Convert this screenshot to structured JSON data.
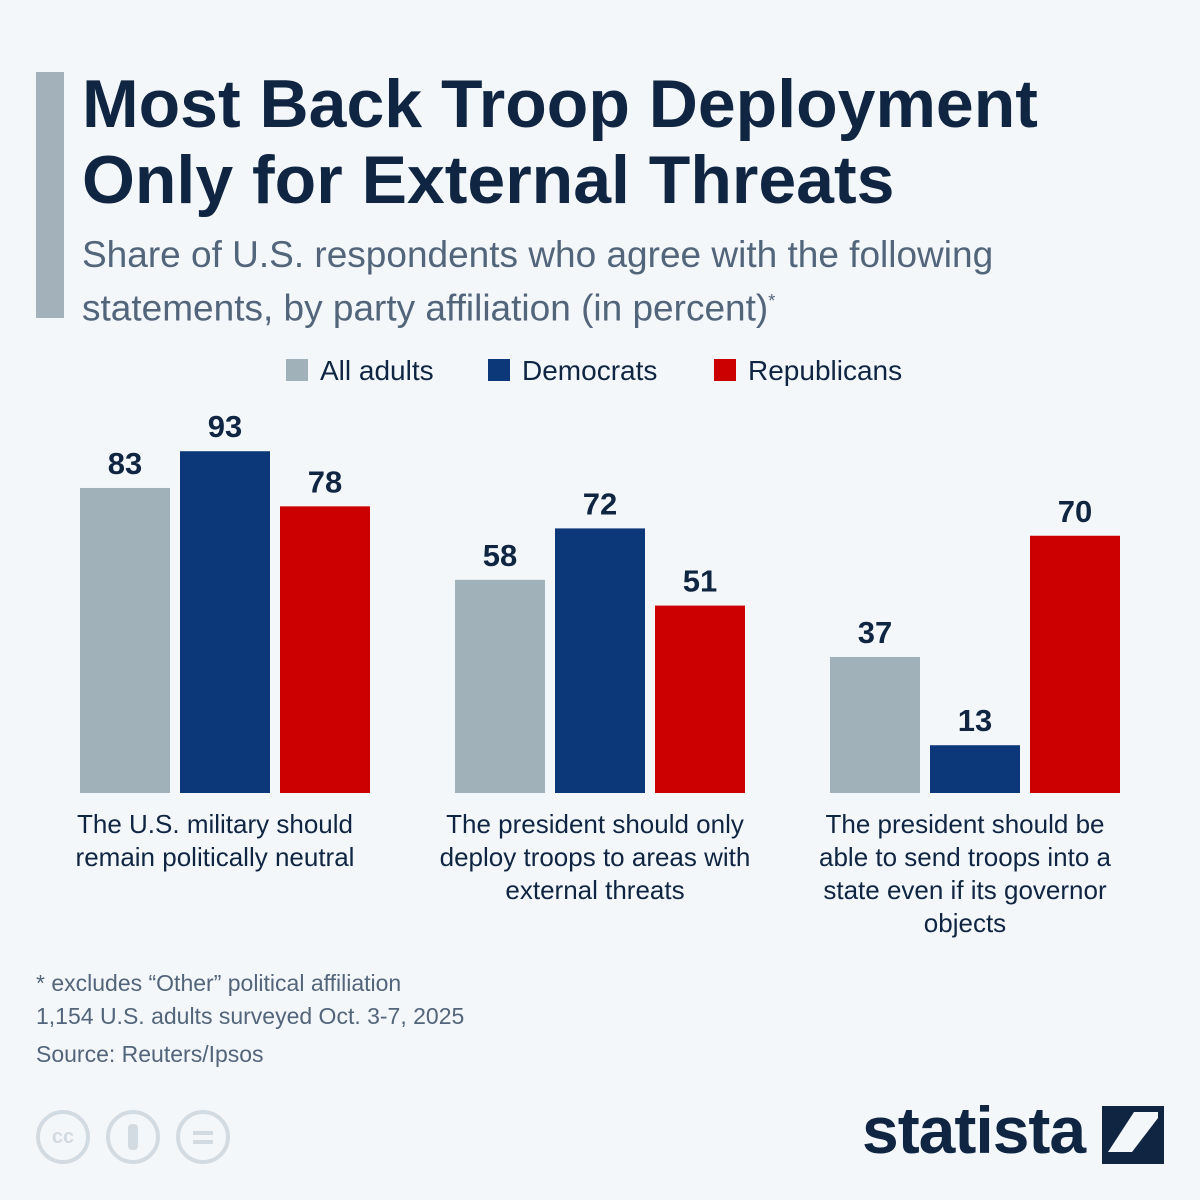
{
  "chart_data": {
    "type": "grouped_bar",
    "title": "Most Back Troop Deployment Only for External Threats",
    "subtitle": "Share of U.S. respondents who agree with the following statements, by party affiliation (in percent)",
    "subtitle_marker": "*",
    "categories": [
      "The U.S. military should remain politically neutral",
      "The president should only deploy troops to areas with external threats",
      "The president should be able to send troops into a state even if its governor objects"
    ],
    "series": [
      {
        "name": "All adults",
        "color": "#a0b1ba",
        "values": [
          83,
          58,
          37
        ]
      },
      {
        "name": "Democrats",
        "color": "#0c3879",
        "values": [
          93,
          72,
          13
        ]
      },
      {
        "name": "Republicans",
        "color": "#cc0000",
        "values": [
          78,
          51,
          70
        ]
      }
    ],
    "ylim": [
      0,
      100
    ],
    "grid": false,
    "legend": "top",
    "notes": [
      "* excludes “Other” political affiliation",
      "1,154 U.S. adults surveyed Oct. 3-7, 2025"
    ],
    "source": "Source: Reuters/Ipsos",
    "brand": "statista"
  }
}
